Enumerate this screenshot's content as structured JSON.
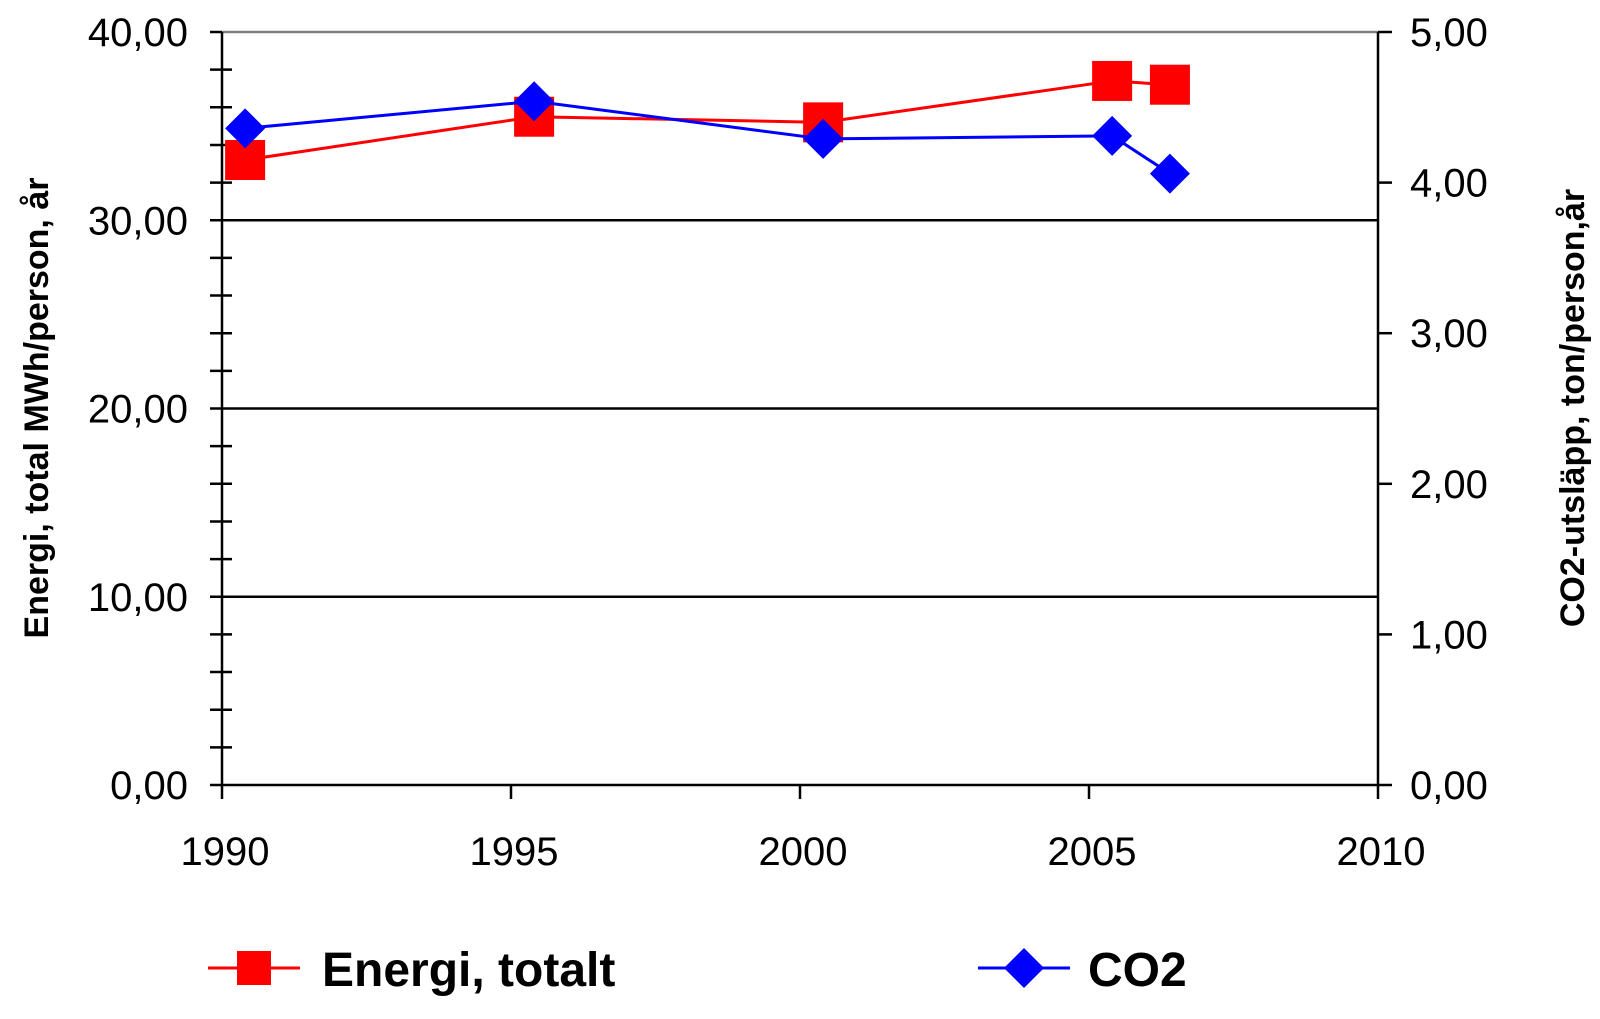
{
  "chart_data": {
    "type": "line",
    "x": [
      1990,
      1995,
      2000,
      2005,
      2006
    ],
    "xlim": [
      1990,
      2010
    ],
    "x_ticks": [
      "1990",
      "1995",
      "2000",
      "2005",
      "2010"
    ],
    "ylim_left": [
      0,
      40
    ],
    "ylim_right": [
      0,
      5
    ],
    "y_ticks_left": [
      "0,00",
      "10,00",
      "20,00",
      "30,00",
      "40,00"
    ],
    "y_ticks_right": [
      "0,00",
      "1,00",
      "2,00",
      "3,00",
      "4,00",
      "5,00"
    ],
    "ylabel_left": "Energi, total MWh/person, år",
    "ylabel_right": "CO2-utsläpp, ton/person,år",
    "grid": "horizontal major lines (left axis)",
    "legend": "bottom",
    "series": [
      {
        "name": "Energi, totalt",
        "axis": "left",
        "marker": "square",
        "color": "#ff0000",
        "values": [
          33.2,
          35.5,
          35.2,
          37.4,
          37.2
        ]
      },
      {
        "name": "CO2",
        "axis": "right",
        "marker": "diamond",
        "color": "#0000ff",
        "values": [
          4.36,
          4.54,
          4.29,
          4.31,
          4.06
        ]
      }
    ]
  }
}
